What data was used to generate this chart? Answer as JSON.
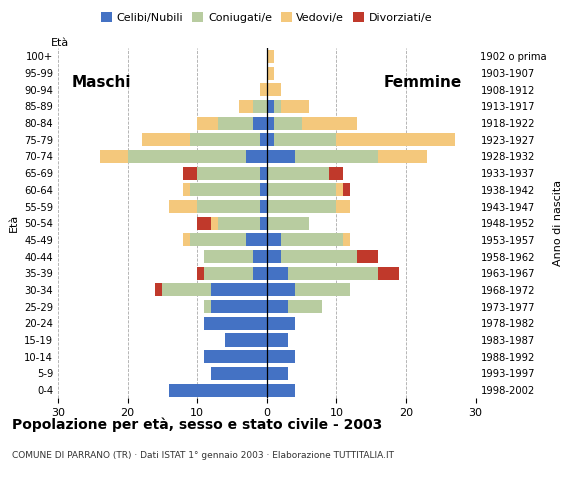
{
  "age_groups": [
    "0-4",
    "5-9",
    "10-14",
    "15-19",
    "20-24",
    "25-29",
    "30-34",
    "35-39",
    "40-44",
    "45-49",
    "50-54",
    "55-59",
    "60-64",
    "65-69",
    "70-74",
    "75-79",
    "80-84",
    "85-89",
    "90-94",
    "95-99",
    "100+"
  ],
  "birth_years": [
    "1998-2002",
    "1993-1997",
    "1988-1992",
    "1983-1987",
    "1978-1982",
    "1973-1977",
    "1968-1972",
    "1963-1967",
    "1958-1962",
    "1953-1957",
    "1948-1952",
    "1943-1947",
    "1938-1942",
    "1933-1937",
    "1928-1932",
    "1923-1927",
    "1918-1922",
    "1913-1917",
    "1908-1912",
    "1903-1907",
    "1902 o prima"
  ],
  "males": {
    "celibi": [
      14,
      8,
      9,
      6,
      9,
      8,
      8,
      2,
      2,
      3,
      1,
      1,
      1,
      1,
      3,
      1,
      2,
      0,
      0,
      0,
      0
    ],
    "coniugati": [
      0,
      0,
      0,
      0,
      0,
      1,
      7,
      7,
      7,
      8,
      6,
      9,
      10,
      9,
      17,
      10,
      5,
      2,
      0,
      0,
      0
    ],
    "vedovi": [
      0,
      0,
      0,
      0,
      0,
      0,
      0,
      0,
      0,
      1,
      1,
      4,
      1,
      0,
      4,
      7,
      3,
      2,
      1,
      0,
      0
    ],
    "divorziati": [
      0,
      0,
      0,
      0,
      0,
      0,
      1,
      1,
      0,
      0,
      2,
      0,
      0,
      2,
      0,
      0,
      0,
      0,
      0,
      0,
      0
    ]
  },
  "females": {
    "nubili": [
      4,
      3,
      4,
      3,
      4,
      3,
      4,
      3,
      2,
      2,
      0,
      0,
      0,
      0,
      4,
      1,
      1,
      1,
      0,
      0,
      0
    ],
    "coniugate": [
      0,
      0,
      0,
      0,
      0,
      5,
      8,
      13,
      11,
      9,
      6,
      10,
      10,
      9,
      12,
      9,
      4,
      1,
      0,
      0,
      0
    ],
    "vedove": [
      0,
      0,
      0,
      0,
      0,
      0,
      0,
      0,
      0,
      1,
      0,
      2,
      1,
      0,
      7,
      17,
      8,
      4,
      2,
      1,
      1
    ],
    "divorziate": [
      0,
      0,
      0,
      0,
      0,
      0,
      0,
      3,
      3,
      0,
      0,
      0,
      1,
      2,
      0,
      0,
      0,
      0,
      0,
      0,
      0
    ]
  },
  "colors": {
    "celibi": "#4472c4",
    "coniugati": "#b8cca0",
    "vedovi": "#f4c87c",
    "divorziati": "#c0392b"
  },
  "title": "Popolazione per età, sesso e stato civile - 2003",
  "subtitle": "COMUNE DI PARRANO (TR) · Dati ISTAT 1° gennaio 2003 · Elaborazione TUTTITALIA.IT",
  "xlabel_left": "Maschi",
  "xlabel_right": "Femmine",
  "ylabel_left": "Età",
  "ylabel_right": "Anno di nascita",
  "xlim": 30,
  "legend_labels": [
    "Celibi/Nubili",
    "Coniugati/e",
    "Vedovi/e",
    "Divorziati/e"
  ]
}
